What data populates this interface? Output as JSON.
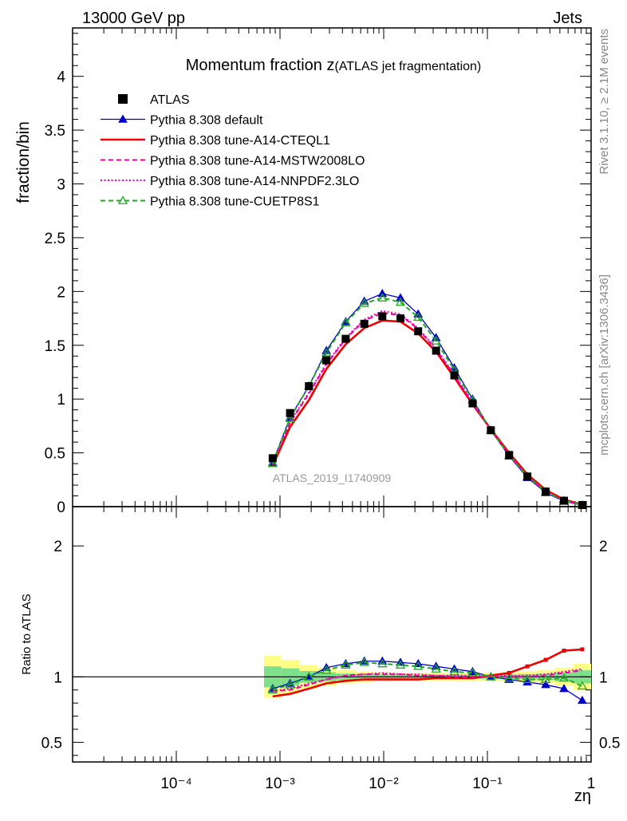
{
  "header": {
    "energy_label": "13000 GeV pp",
    "process_label": "Jets",
    "side_rivet": "Rivet 3.1.10, ≥ 2.1M events",
    "side_mcplots": "mcplots.cern.ch [arXiv:1306.3436]",
    "analysis_id": "ATLAS_2019_I1740909"
  },
  "chart_data": [
    {
      "panel": "main",
      "type": "line",
      "title_main": "Momentum fraction z",
      "title_sub": "(ATLAS jet fragmentation)",
      "ylabel": "fraction/bin",
      "x_scale": "log",
      "xlim": [
        1e-05,
        1
      ],
      "ylim": [
        0,
        4.45
      ],
      "y_ticks": [
        "0",
        "0.5",
        "1",
        "1.5",
        "2",
        "2.5",
        "3",
        "3.5",
        "4"
      ],
      "legend_position": "top-left",
      "x": [
        0.00085,
        0.00125,
        0.0019,
        0.0028,
        0.0043,
        0.0065,
        0.0097,
        0.0145,
        0.0215,
        0.032,
        0.048,
        0.072,
        0.108,
        0.162,
        0.243,
        0.365,
        0.548,
        0.822
      ],
      "series": [
        {
          "name": "ATLAS",
          "style": "data",
          "color": "#000000",
          "values": [
            0.45,
            0.87,
            1.12,
            1.36,
            1.56,
            1.7,
            1.77,
            1.75,
            1.63,
            1.45,
            1.22,
            0.96,
            0.71,
            0.48,
            0.28,
            0.14,
            0.055,
            0.015
          ]
        },
        {
          "name": "Pythia 8.308 default",
          "style": "solid-triangle",
          "color": "#0000cc",
          "values": [
            0.41,
            0.83,
            1.12,
            1.45,
            1.72,
            1.91,
            1.98,
            1.94,
            1.79,
            1.57,
            1.29,
            1.0,
            0.71,
            0.47,
            0.27,
            0.13,
            0.05,
            0.012
          ]
        },
        {
          "name": "Pythia 8.308 tune-A14-CTEQL1",
          "style": "solid",
          "color": "#ee0000",
          "values": [
            0.38,
            0.74,
            0.99,
            1.28,
            1.51,
            1.66,
            1.73,
            1.72,
            1.61,
            1.44,
            1.2,
            0.95,
            0.72,
            0.5,
            0.3,
            0.155,
            0.066,
            0.018
          ]
        },
        {
          "name": "Pythia 8.308 tune-A14-MSTW2008LO",
          "style": "dashed",
          "color": "#ee0099",
          "values": [
            0.4,
            0.78,
            1.05,
            1.32,
            1.56,
            1.73,
            1.8,
            1.78,
            1.65,
            1.46,
            1.22,
            0.96,
            0.71,
            0.48,
            0.28,
            0.14,
            0.056,
            0.016
          ]
        },
        {
          "name": "Pythia 8.308 tune-A14-NNPDF2.3LO",
          "style": "dotted",
          "color": "#ee00cc",
          "values": [
            0.4,
            0.79,
            1.06,
            1.33,
            1.57,
            1.74,
            1.82,
            1.79,
            1.66,
            1.47,
            1.23,
            0.97,
            0.72,
            0.48,
            0.28,
            0.14,
            0.057,
            0.016
          ]
        },
        {
          "name": "Pythia 8.308 tune-CUETP8S1",
          "style": "dashed-open-triangle",
          "color": "#22aa22",
          "values": [
            0.4,
            0.82,
            1.12,
            1.43,
            1.71,
            1.89,
            1.94,
            1.9,
            1.76,
            1.54,
            1.27,
            0.99,
            0.71,
            0.48,
            0.28,
            0.14,
            0.055,
            0.014
          ]
        }
      ]
    },
    {
      "panel": "ratio",
      "type": "line",
      "ylabel": "Ratio to ATLAS",
      "xlabel": "zη",
      "x_scale": "log",
      "xlim": [
        1e-05,
        1
      ],
      "ylim": [
        0.35,
        2.3
      ],
      "y_ticks": [
        "0.5",
        "1",
        "2"
      ],
      "x_ticks": [
        "10⁻⁴",
        "10⁻³",
        "10⁻²",
        "10⁻¹",
        "1"
      ],
      "x": [
        0.00085,
        0.00125,
        0.0019,
        0.0028,
        0.0043,
        0.0065,
        0.0097,
        0.0145,
        0.0215,
        0.032,
        0.048,
        0.072,
        0.108,
        0.162,
        0.243,
        0.365,
        0.548,
        0.822
      ],
      "band_outer": [
        0.16,
        0.13,
        0.09,
        0.07,
        0.05,
        0.04,
        0.035,
        0.03,
        0.03,
        0.03,
        0.03,
        0.03,
        0.03,
        0.035,
        0.04,
        0.05,
        0.07,
        0.1
      ],
      "band_inner": [
        0.08,
        0.065,
        0.045,
        0.035,
        0.025,
        0.02,
        0.018,
        0.016,
        0.016,
        0.016,
        0.016,
        0.016,
        0.016,
        0.018,
        0.02,
        0.025,
        0.035,
        0.05
      ],
      "series": [
        {
          "name": "Pythia 8.308 default",
          "style": "solid-triangle",
          "color": "#0000cc",
          "values": [
            0.91,
            0.95,
            1.0,
            1.07,
            1.1,
            1.12,
            1.12,
            1.11,
            1.1,
            1.08,
            1.06,
            1.04,
            1.0,
            0.98,
            0.96,
            0.94,
            0.91,
            0.82
          ]
        },
        {
          "name": "Pythia 8.308 tune-A14-CTEQL1",
          "style": "solid",
          "color": "#ee0000",
          "values": [
            0.85,
            0.87,
            0.91,
            0.95,
            0.97,
            0.98,
            0.98,
            0.98,
            0.98,
            0.99,
            0.99,
            0.99,
            1.01,
            1.03,
            1.08,
            1.13,
            1.2,
            1.21
          ]
        },
        {
          "name": "Pythia 8.308 tune-A14-MSTW2008LO",
          "style": "dashed",
          "color": "#ee0099",
          "values": [
            0.89,
            0.9,
            0.94,
            0.98,
            1.01,
            1.02,
            1.02,
            1.02,
            1.01,
            1.01,
            1.0,
            1.0,
            1.0,
            1.0,
            1.0,
            1.01,
            1.03,
            1.05
          ]
        },
        {
          "name": "Pythia 8.308 tune-A14-NNPDF2.3LO",
          "style": "dotted",
          "color": "#ee00cc",
          "values": [
            0.89,
            0.91,
            0.95,
            0.98,
            1.01,
            1.02,
            1.03,
            1.02,
            1.02,
            1.01,
            1.01,
            1.01,
            1.01,
            1.01,
            1.01,
            1.02,
            1.04,
            1.06
          ]
        },
        {
          "name": "Pythia 8.308 tune-CUETP8S1",
          "style": "dashed-open-triangle",
          "color": "#22aa22",
          "values": [
            0.9,
            0.94,
            1.0,
            1.05,
            1.09,
            1.11,
            1.1,
            1.09,
            1.08,
            1.06,
            1.04,
            1.03,
            1.0,
            0.99,
            0.98,
            0.98,
            0.99,
            0.93
          ]
        }
      ]
    }
  ]
}
